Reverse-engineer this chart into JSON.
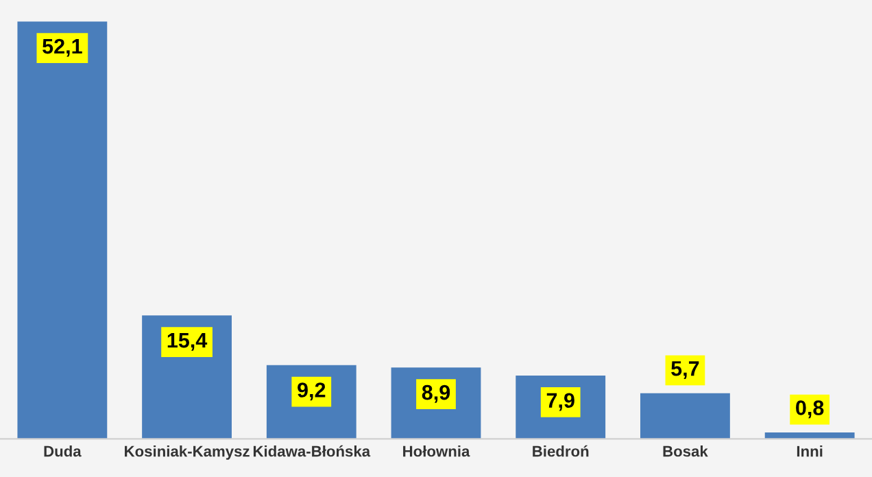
{
  "chart_data": {
    "type": "bar",
    "categories": [
      "Duda",
      "Kosiniak-Kamysz",
      "Kidawa-Błońska",
      "Hołownia",
      "Biedroń",
      "Bosak",
      "Inni"
    ],
    "values": [
      52.1,
      15.4,
      9.2,
      8.9,
      7.9,
      5.7,
      0.8
    ],
    "value_labels": [
      "52,1",
      "15,4",
      "9,2",
      "8,9",
      "7,9",
      "5,7",
      "0,8"
    ],
    "color": "#4a7ebb",
    "grid": false,
    "legend": false
  }
}
